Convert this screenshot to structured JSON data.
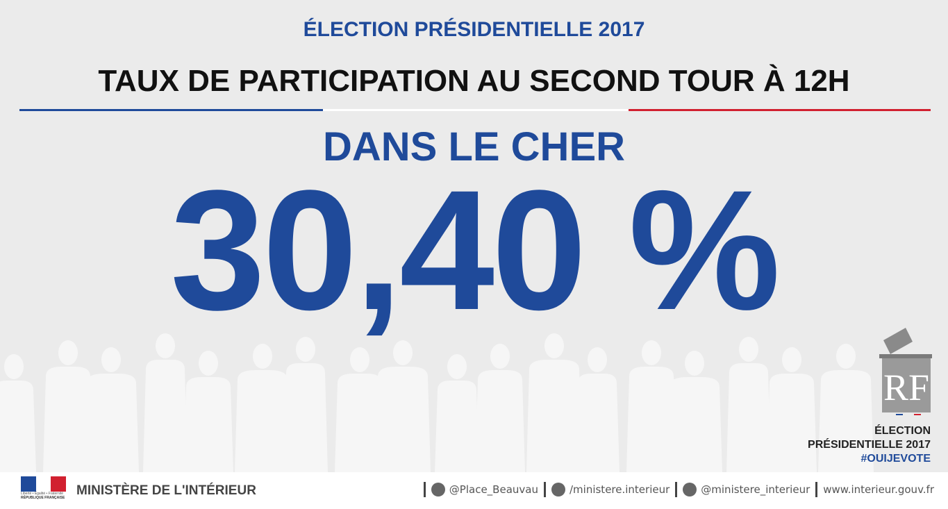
{
  "header": {
    "supertitle": "ÉLECTION PRÉSIDENTIELLE 2017",
    "title": "TAUX DE PARTICIPATION AU SECOND TOUR À 12H"
  },
  "location": "DANS LE CHER",
  "rate": "30,40 %",
  "badge": {
    "monogram": "RF",
    "lines": [
      "ÉLECTION",
      "PRÉSIDENTIELLE 2017",
      "#OUIJEVOTE"
    ]
  },
  "footer": {
    "motto": "Liberté • Égalité • Fraternité",
    "republic": "RÉPUBLIQUE FRANÇAISE",
    "ministry": "MINISTÈRE DE L'INTÉRIEUR",
    "links": [
      "@Place_Beauvau",
      "/ministere.interieur",
      "@ministere_interieur",
      "www.interieur.gouv.fr"
    ]
  }
}
